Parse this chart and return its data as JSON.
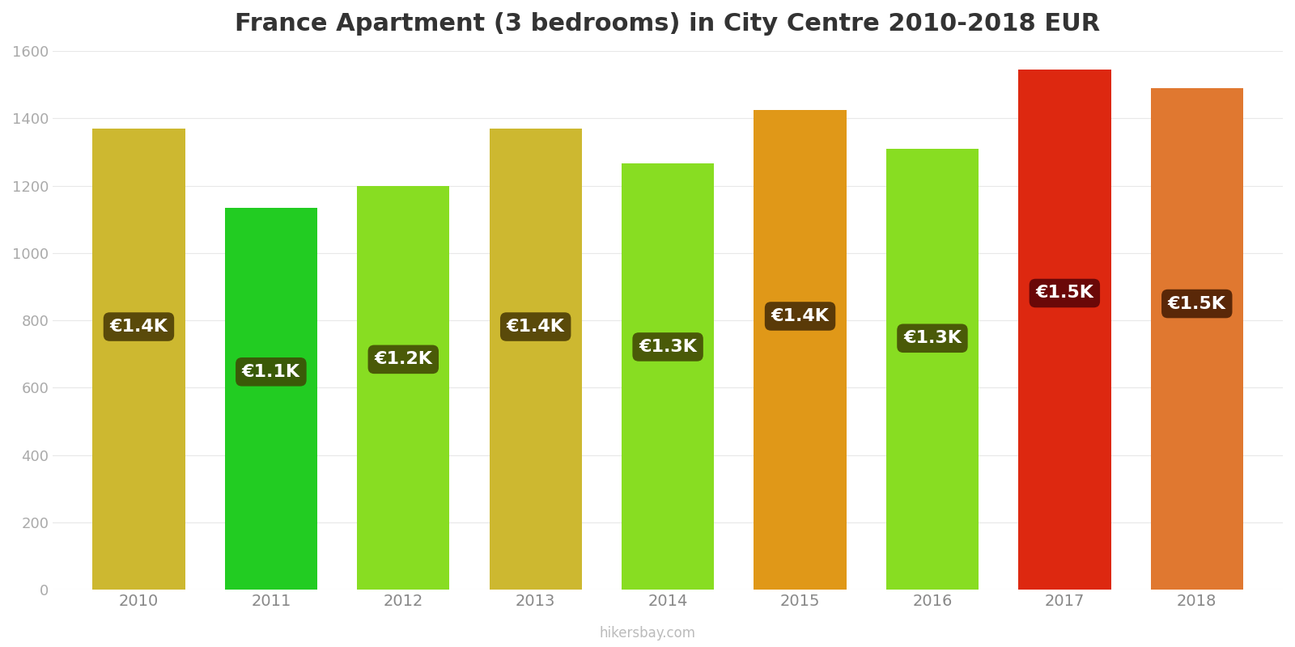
{
  "title": "France Apartment (3 bedrooms) in City Centre 2010-2018 EUR",
  "years": [
    2010,
    2011,
    2012,
    2013,
    2014,
    2015,
    2016,
    2017,
    2018
  ],
  "values": [
    1370,
    1135,
    1200,
    1370,
    1265,
    1425,
    1310,
    1545,
    1490
  ],
  "labels": [
    "€1.4K",
    "€1.1K",
    "€1.2K",
    "€1.4K",
    "€1.3K",
    "€1.4K",
    "€1.3K",
    "€1.5K",
    "€1.5K"
  ],
  "bar_colors": [
    "#cdb830",
    "#22cc22",
    "#88dd22",
    "#cdb830",
    "#88dd22",
    "#e09818",
    "#88dd22",
    "#dd2810",
    "#e07830"
  ],
  "label_bg_colors": [
    "#5a4a0a",
    "#3a5a08",
    "#4a5a08",
    "#5a4a0a",
    "#4a5a08",
    "#5a3a08",
    "#4a5a08",
    "#6a0808",
    "#5a2808"
  ],
  "ylim": [
    0,
    1600
  ],
  "yticks": [
    0,
    200,
    400,
    600,
    800,
    1000,
    1200,
    1400,
    1600
  ],
  "background_color": "#ffffff",
  "watermark": "hikersbay.com",
  "label_fontsize": 16,
  "title_fontsize": 22,
  "bar_width": 0.7
}
